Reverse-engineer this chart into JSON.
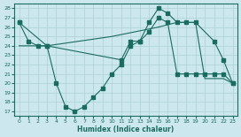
{
  "xlabel": "Humidex (Indice chaleur)",
  "bg_color": "#cce8ee",
  "grid_color": "#b0d4dc",
  "line_color": "#1a6b60",
  "xlim": [
    -0.5,
    23.5
  ],
  "ylim": [
    16.5,
    28.5
  ],
  "xticks": [
    0,
    1,
    2,
    3,
    4,
    5,
    6,
    7,
    8,
    9,
    10,
    11,
    12,
    13,
    14,
    15,
    16,
    17,
    18,
    19,
    20,
    21,
    22,
    23
  ],
  "yticks": [
    17,
    18,
    19,
    20,
    21,
    22,
    23,
    24,
    25,
    26,
    27,
    28
  ],
  "line1_x": [
    0,
    1,
    2,
    3,
    11,
    12,
    13,
    14,
    15,
    16,
    17,
    18,
    19,
    21,
    22,
    23
  ],
  "line1_y": [
    26.5,
    24.5,
    24.0,
    24.0,
    22.5,
    24.5,
    24.5,
    26.5,
    28.0,
    27.5,
    26.5,
    26.5,
    26.5,
    24.5,
    22.5,
    20.0
  ],
  "line2_x": [
    0,
    3,
    4,
    5,
    6,
    7,
    8,
    9,
    10,
    11,
    12,
    13,
    14,
    15,
    16,
    17,
    18,
    19,
    20,
    21,
    22,
    23
  ],
  "line2_y": [
    26.5,
    24.0,
    20.0,
    17.5,
    17.0,
    17.5,
    18.5,
    19.5,
    21.0,
    22.0,
    24.0,
    24.5,
    25.5,
    27.0,
    26.5,
    21.0,
    21.0,
    21.0,
    21.0,
    21.0,
    21.0,
    20.0
  ],
  "line3_x": [
    0,
    3,
    10,
    15,
    17,
    18,
    19,
    20,
    21,
    22,
    23
  ],
  "line3_y": [
    24.0,
    24.0,
    25.0,
    26.0,
    26.5,
    26.5,
    26.5,
    20.5,
    20.5,
    20.5,
    20.0
  ]
}
